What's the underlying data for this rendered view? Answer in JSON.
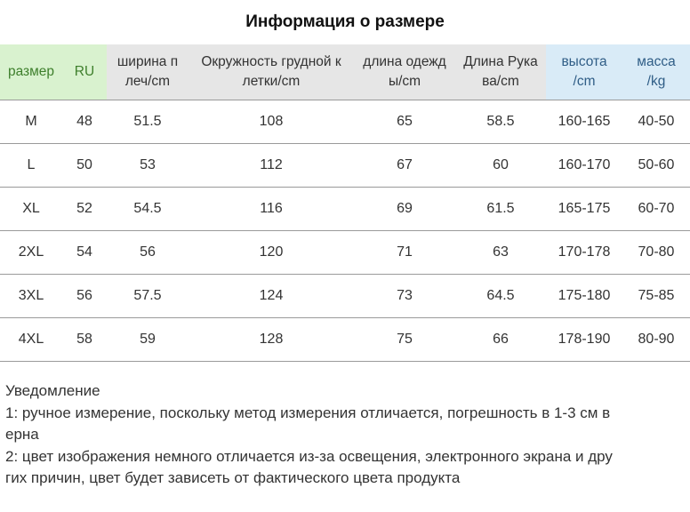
{
  "title": "Информация о размере",
  "table": {
    "headers": [
      "размер",
      "RU",
      "ширина п\nлеч/cm",
      "Окружность грудной к\nлетки/cm",
      "длина одежд\nы/cm",
      "Длина Рука\nва/cm",
      "высота\n/cm",
      "масса\n/kg"
    ],
    "rows": [
      [
        "M",
        "48",
        "51.5",
        "108",
        "65",
        "58.5",
        "160-165",
        "40-50"
      ],
      [
        "L",
        "50",
        "53",
        "112",
        "67",
        "60",
        "160-170",
        "50-60"
      ],
      [
        "XL",
        "52",
        "54.5",
        "116",
        "69",
        "61.5",
        "165-175",
        "60-70"
      ],
      [
        "2XL",
        "54",
        "56",
        "120",
        "71",
        "63",
        "170-178",
        "70-80"
      ],
      [
        "3XL",
        "56",
        "57.5",
        "124",
        "73",
        "64.5",
        "175-180",
        "75-85"
      ],
      [
        "4XL",
        "58",
        "59",
        "128",
        "75",
        "66",
        "178-190",
        "80-90"
      ]
    ]
  },
  "notes": {
    "heading": "Уведомление",
    "line1a": "1: ручное измерение, поскольку метод измерения отличается, погрешность в 1-3 см в",
    "line1b": "ерна",
    "line2a": "2: цвет изображения немного отличается из-за освещения, электронного экрана и дру",
    "line2b": "гих причин, цвет будет зависеть от фактического цвета продукта"
  },
  "colors": {
    "header_green_bg": "#d9f2cf",
    "header_green_text": "#3e7f2c",
    "header_gray_bg": "#e6e6e6",
    "header_blue_bg": "#d9ebf7",
    "header_blue_text": "#2f5d86"
  }
}
